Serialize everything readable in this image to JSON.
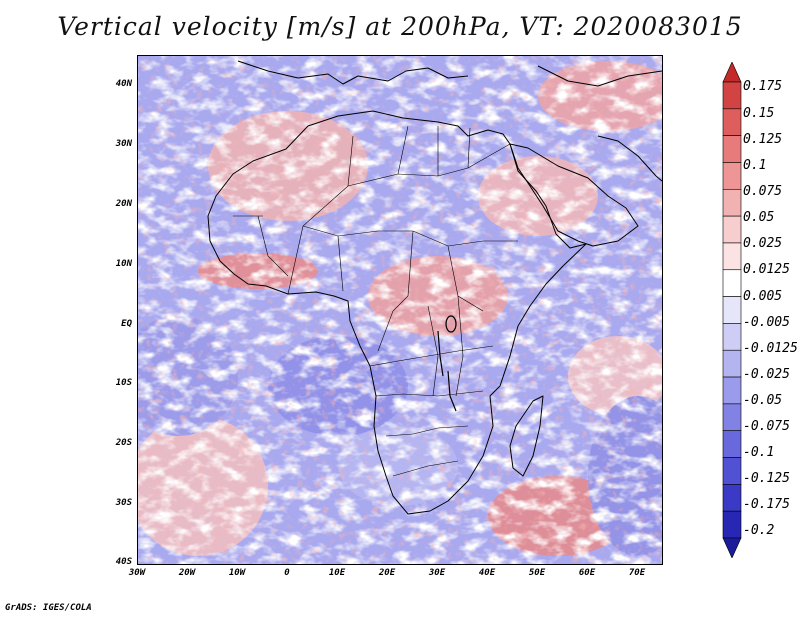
{
  "title": "Vertical velocity [m/s] at 200hPa, VT: 2020083015",
  "latitude_labels": [
    "40N",
    "30N",
    "20N",
    "10N",
    "EQ",
    "10S",
    "20S",
    "30S",
    "40S"
  ],
  "longitude_labels": [
    "30W",
    "20W",
    "10W",
    "0",
    "10E",
    "20E",
    "30E",
    "40E",
    "50E",
    "60E",
    "70E"
  ],
  "colorbar": {
    "labels": [
      "0.175",
      "0.15",
      "0.125",
      "0.1",
      "0.075",
      "0.05",
      "0.025",
      "0.0125",
      "0.005",
      "-0.005",
      "-0.0125",
      "-0.025",
      "-0.05",
      "-0.075",
      "-0.1",
      "-0.125",
      "-0.175",
      "-0.2"
    ],
    "colors": [
      "#c42a2a",
      "#d24444",
      "#de5e5e",
      "#e77a7a",
      "#ee9696",
      "#f3b2b2",
      "#f8cdcd",
      "#fbe3e3",
      "#ffffff",
      "#e6e6fb",
      "#cdcdf6",
      "#b4b4f1",
      "#9b9bec",
      "#8282e5",
      "#6969dd",
      "#5151d3",
      "#3a3ac6",
      "#2727b3",
      "#1b1b9c"
    ]
  },
  "footer": "GrADS: IGES/COLA",
  "colors": {
    "positive": "#e88a8a",
    "negative": "#8a8ae8",
    "background": "#ffffff",
    "coastline": "#000000"
  }
}
